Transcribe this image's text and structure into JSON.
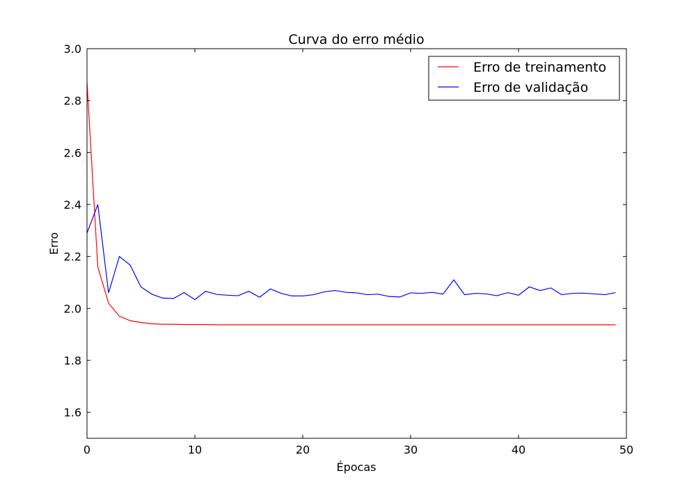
{
  "chart_data": {
    "type": "line",
    "title": "Curva do erro médio",
    "xlabel": "Épocas",
    "ylabel": "Erro",
    "xlim": [
      0,
      50
    ],
    "ylim": [
      1.5,
      3.0
    ],
    "xticks": [
      0,
      10,
      20,
      30,
      40,
      50
    ],
    "yticks": [
      1.6,
      1.8,
      2.0,
      2.2,
      2.4,
      2.6,
      2.8,
      3.0
    ],
    "xtick_labels": [
      "0",
      "10",
      "20",
      "30",
      "40",
      "50"
    ],
    "ytick_labels": [
      "1.6",
      "1.8",
      "2.0",
      "2.2",
      "2.4",
      "2.6",
      "2.8",
      "3.0"
    ],
    "grid": false,
    "legend_position": "top-right",
    "x": [
      0,
      1,
      2,
      3,
      4,
      5,
      6,
      7,
      8,
      9,
      10,
      11,
      12,
      13,
      14,
      15,
      16,
      17,
      18,
      19,
      20,
      21,
      22,
      23,
      24,
      25,
      26,
      27,
      28,
      29,
      30,
      31,
      32,
      33,
      34,
      35,
      36,
      37,
      38,
      39,
      40,
      41,
      42,
      43,
      44,
      45,
      46,
      47,
      48,
      49
    ],
    "series": [
      {
        "name": "Erro de treinamento",
        "color": "#ff0000",
        "values": [
          2.87,
          2.16,
          2.02,
          1.97,
          1.953,
          1.946,
          1.941,
          1.939,
          1.939,
          1.938,
          1.938,
          1.938,
          1.937,
          1.937,
          1.937,
          1.937,
          1.937,
          1.937,
          1.937,
          1.937,
          1.937,
          1.937,
          1.937,
          1.937,
          1.937,
          1.937,
          1.937,
          1.937,
          1.937,
          1.937,
          1.937,
          1.937,
          1.937,
          1.937,
          1.937,
          1.937,
          1.937,
          1.937,
          1.937,
          1.937,
          1.937,
          1.937,
          1.937,
          1.937,
          1.937,
          1.937,
          1.937,
          1.937,
          1.937,
          1.937
        ]
      },
      {
        "name": "Erro de validação",
        "color": "#0000ff",
        "values": [
          2.29,
          2.4,
          2.06,
          2.2,
          2.167,
          2.083,
          2.055,
          2.04,
          2.038,
          2.061,
          2.034,
          2.066,
          2.054,
          2.051,
          2.049,
          2.066,
          2.043,
          2.075,
          2.058,
          2.048,
          2.048,
          2.053,
          2.064,
          2.069,
          2.062,
          2.06,
          2.053,
          2.055,
          2.046,
          2.044,
          2.06,
          2.058,
          2.062,
          2.055,
          2.11,
          2.053,
          2.058,
          2.056,
          2.049,
          2.061,
          2.051,
          2.083,
          2.069,
          2.079,
          2.053,
          2.058,
          2.059,
          2.056,
          2.053,
          2.061
        ]
      }
    ]
  }
}
